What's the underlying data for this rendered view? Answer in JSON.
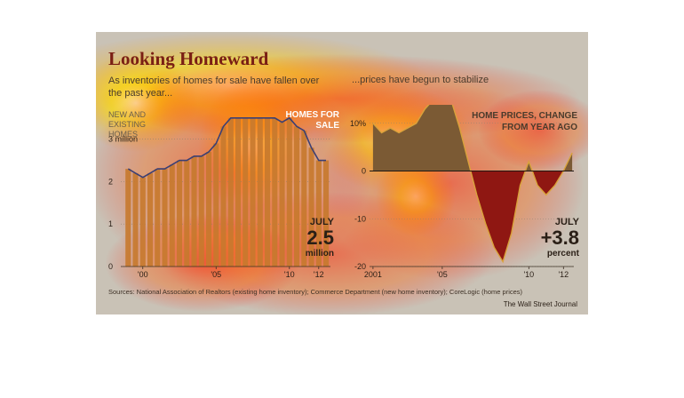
{
  "heading": {
    "title": "Looking Homeward",
    "subtitle_left": "As inventories of homes for sale have fallen over the past year...",
    "subtitle_right": "...prices have begun to stabilize"
  },
  "footer": {
    "source": "Sources: National Association of Realtors (existing home inventory); Commerce Department (new home inventory); CoreLogic (home prices)",
    "credit": "The Wall Street Journal"
  },
  "colors": {
    "background": "#c9c2b6",
    "title": "#7a1f14",
    "existing_bars": "#c7792e",
    "new_line": "#3b3f74",
    "positive_fill": "#7b5a34",
    "negative_fill": "#8f1712"
  },
  "chart_data": [
    {
      "type": "bar",
      "title_lines": [
        "NEW AND",
        "EXISTING HOMES",
        "HOMES FOR",
        "SALE"
      ],
      "x_tick_labels": [
        "'00",
        "'05",
        "'10",
        "'12"
      ],
      "x_tick_years": [
        2000,
        2005,
        2010,
        2012
      ],
      "y_tick_labels": [
        "0",
        "1",
        "2",
        "3 million"
      ],
      "y_ticks": [
        0,
        1,
        2,
        3
      ],
      "ylim": [
        0,
        3.6
      ],
      "xlim": [
        1998.5,
        2012.8
      ],
      "grid": true,
      "callout": {
        "month": "JULY",
        "value": "2.5",
        "unit": "million"
      },
      "series": [
        {
          "x": [
            1999.0,
            1999.5,
            2000.0,
            2000.5,
            2001.0,
            2001.5,
            2002.0,
            2002.5,
            2003.0,
            2003.5,
            2004.0,
            2004.5,
            2005.0,
            2005.5,
            2006.0,
            2006.5,
            2007.0,
            2007.5,
            2008.0,
            2008.5,
            2009.0,
            2009.5,
            2010.0,
            2010.5,
            2011.0,
            2011.5,
            2012.0,
            2012.5
          ],
          "values": [
            2.3,
            2.2,
            2.1,
            2.2,
            2.3,
            2.3,
            2.4,
            2.5,
            2.5,
            2.6,
            2.6,
            2.7,
            2.9,
            3.3,
            3.8,
            3.7,
            4.0,
            3.8,
            3.9,
            3.7,
            3.5,
            3.4,
            3.7,
            3.3,
            3.2,
            2.8,
            2.5,
            2.5
          ]
        }
      ]
    },
    {
      "type": "area",
      "title_lines": [
        "HOME PRICES, CHANGE",
        "FROM YEAR AGO"
      ],
      "x_tick_labels": [
        "2001",
        "'05",
        "'10",
        "'12"
      ],
      "x_tick_years": [
        2001,
        2005,
        2010,
        2012
      ],
      "y_tick_labels": [
        "10%",
        "0",
        "-10",
        "-20"
      ],
      "y_ticks": [
        10,
        0,
        -10,
        -20
      ],
      "ylim": [
        -20,
        12
      ],
      "xlim": [
        2000.8,
        2012.6
      ],
      "grid": true,
      "callout": {
        "month": "JULY",
        "value": "+3.8",
        "unit": "percent"
      },
      "x": [
        2001.0,
        2001.5,
        2002.0,
        2002.5,
        2003.0,
        2003.5,
        2004.0,
        2004.5,
        2005.0,
        2005.5,
        2006.0,
        2006.5,
        2007.0,
        2007.5,
        2008.0,
        2008.5,
        2009.0,
        2009.5,
        2010.0,
        2010.5,
        2011.0,
        2011.5,
        2012.0,
        2012.5
      ],
      "values": [
        10,
        8,
        9,
        8,
        9,
        10,
        13,
        15,
        17,
        15,
        9,
        2,
        -5,
        -11,
        -16,
        -19,
        -13,
        -3,
        2,
        -3,
        -5,
        -3,
        0,
        3.8
      ]
    }
  ]
}
